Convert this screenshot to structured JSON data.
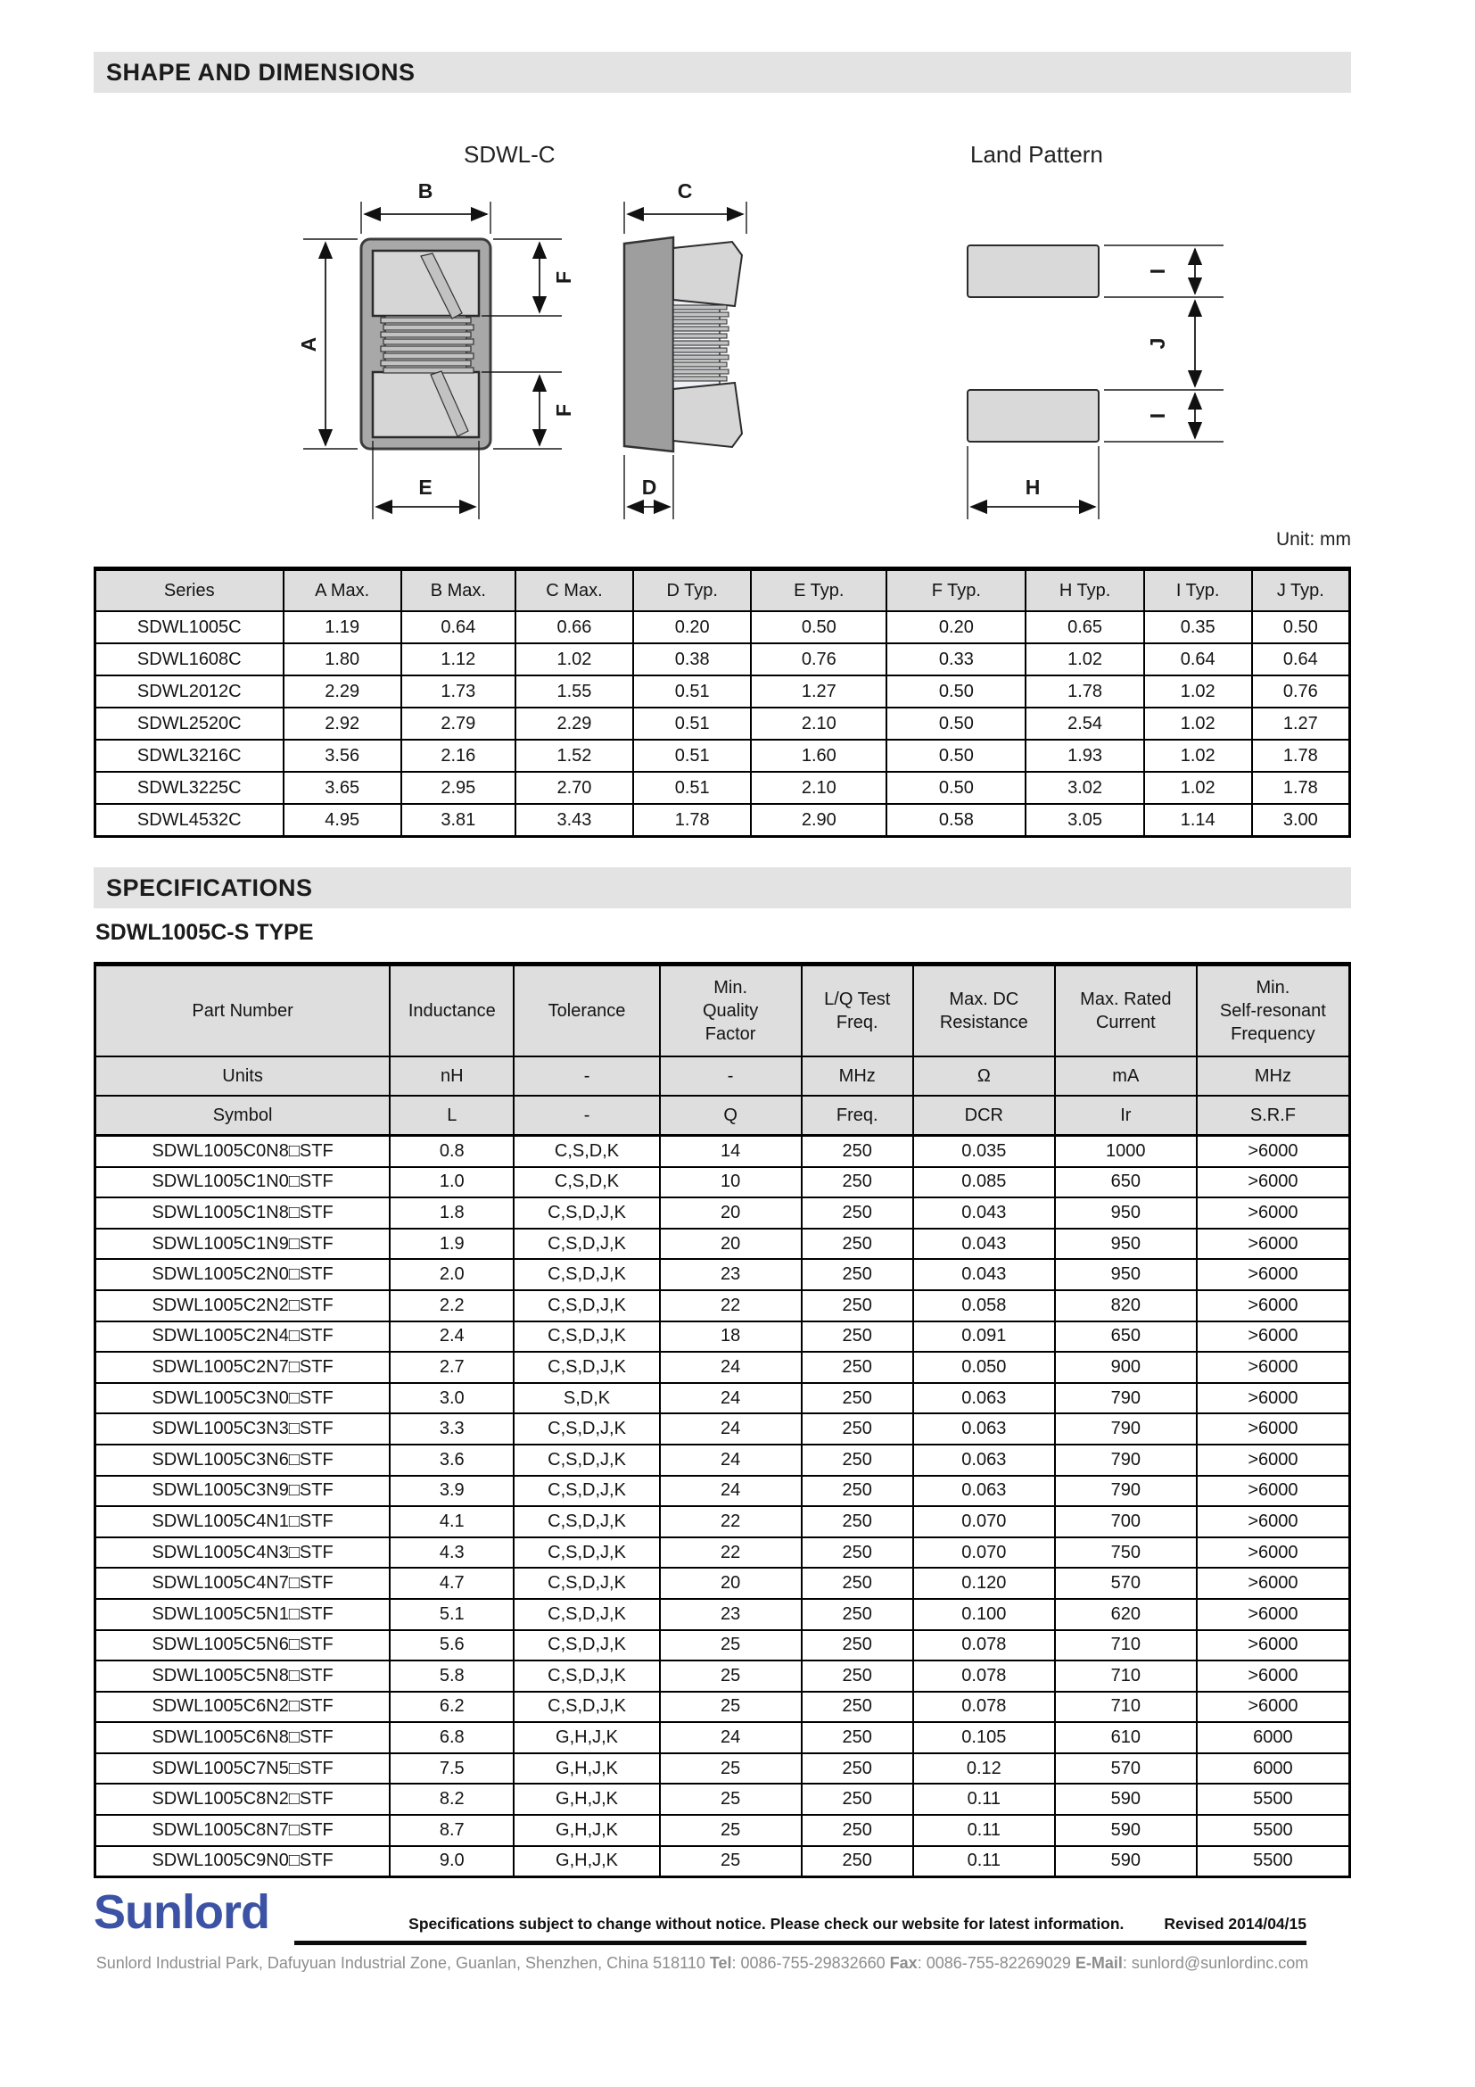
{
  "section_shape": {
    "title": "SHAPE AND DIMENSIONS"
  },
  "drawings": {
    "front_title": "SDWL-C",
    "land_title": "Land Pattern",
    "unit_note": "Unit: mm",
    "labels": {
      "a": "A",
      "b": "B",
      "c": "C",
      "d": "D",
      "e": "E",
      "f": "F",
      "h": "H",
      "i": "I",
      "j": "J"
    }
  },
  "dim_table": {
    "headers": [
      "Series",
      "A Max.",
      "B Max.",
      "C Max.",
      "D Typ.",
      "E Typ.",
      "F Typ.",
      "H Typ.",
      "I Typ.",
      "J Typ."
    ],
    "rows": [
      [
        "SDWL1005C",
        "1.19",
        "0.64",
        "0.66",
        "0.20",
        "0.50",
        "0.20",
        "0.65",
        "0.35",
        "0.50"
      ],
      [
        "SDWL1608C",
        "1.80",
        "1.12",
        "1.02",
        "0.38",
        "0.76",
        "0.33",
        "1.02",
        "0.64",
        "0.64"
      ],
      [
        "SDWL2012C",
        "2.29",
        "1.73",
        "1.55",
        "0.51",
        "1.27",
        "0.50",
        "1.78",
        "1.02",
        "0.76"
      ],
      [
        "SDWL2520C",
        "2.92",
        "2.79",
        "2.29",
        "0.51",
        "2.10",
        "0.50",
        "2.54",
        "1.02",
        "1.27"
      ],
      [
        "SDWL3216C",
        "3.56",
        "2.16",
        "1.52",
        "0.51",
        "1.60",
        "0.50",
        "1.93",
        "1.02",
        "1.78"
      ],
      [
        "SDWL3225C",
        "3.65",
        "2.95",
        "2.70",
        "0.51",
        "2.10",
        "0.50",
        "3.02",
        "1.02",
        "1.78"
      ],
      [
        "SDWL4532C",
        "4.95",
        "3.81",
        "3.43",
        "1.78",
        "2.90",
        "0.58",
        "3.05",
        "1.14",
        "3.00"
      ]
    ]
  },
  "section_specs": {
    "title": "SPECIFICATIONS",
    "type_title": "SDWL1005C-S TYPE"
  },
  "spec_table": {
    "headers": [
      "Part Number",
      "Inductance",
      "Tolerance",
      "Min.\nQuality\nFactor",
      "L/Q Test\nFreq.",
      "Max. DC\nResistance",
      "Max. Rated\nCurrent",
      "Min.\nSelf-resonant\nFrequency"
    ],
    "units_row": [
      "Units",
      "nH",
      "-",
      "-",
      "MHz",
      "Ω",
      "mA",
      "MHz"
    ],
    "symbol_row": [
      "Symbol",
      "L",
      "-",
      "Q",
      "Freq.",
      "DCR",
      "Ir",
      "S.R.F"
    ],
    "rows": [
      [
        "SDWL1005C0N8□STF",
        "0.8",
        "C,S,D,K",
        "14",
        "250",
        "0.035",
        "1000",
        ">6000"
      ],
      [
        "SDWL1005C1N0□STF",
        "1.0",
        "C,S,D,K",
        "10",
        "250",
        "0.085",
        "650",
        ">6000"
      ],
      [
        "SDWL1005C1N8□STF",
        "1.8",
        "C,S,D,J,K",
        "20",
        "250",
        "0.043",
        "950",
        ">6000"
      ],
      [
        "SDWL1005C1N9□STF",
        "1.9",
        "C,S,D,J,K",
        "20",
        "250",
        "0.043",
        "950",
        ">6000"
      ],
      [
        "SDWL1005C2N0□STF",
        "2.0",
        "C,S,D,J,K",
        "23",
        "250",
        "0.043",
        "950",
        ">6000"
      ],
      [
        "SDWL1005C2N2□STF",
        "2.2",
        "C,S,D,J,K",
        "22",
        "250",
        "0.058",
        "820",
        ">6000"
      ],
      [
        "SDWL1005C2N4□STF",
        "2.4",
        "C,S,D,J,K",
        "18",
        "250",
        "0.091",
        "650",
        ">6000"
      ],
      [
        "SDWL1005C2N7□STF",
        "2.7",
        "C,S,D,J,K",
        "24",
        "250",
        "0.050",
        "900",
        ">6000"
      ],
      [
        "SDWL1005C3N0□STF",
        "3.0",
        "S,D,K",
        "24",
        "250",
        "0.063",
        "790",
        ">6000"
      ],
      [
        "SDWL1005C3N3□STF",
        "3.3",
        "C,S,D,J,K",
        "24",
        "250",
        "0.063",
        "790",
        ">6000"
      ],
      [
        "SDWL1005C3N6□STF",
        "3.6",
        "C,S,D,J,K",
        "24",
        "250",
        "0.063",
        "790",
        ">6000"
      ],
      [
        "SDWL1005C3N9□STF",
        "3.9",
        "C,S,D,J,K",
        "24",
        "250",
        "0.063",
        "790",
        ">6000"
      ],
      [
        "SDWL1005C4N1□STF",
        "4.1",
        "C,S,D,J,K",
        "22",
        "250",
        "0.070",
        "700",
        ">6000"
      ],
      [
        "SDWL1005C4N3□STF",
        "4.3",
        "C,S,D,J,K",
        "22",
        "250",
        "0.070",
        "750",
        ">6000"
      ],
      [
        "SDWL1005C4N7□STF",
        "4.7",
        "C,S,D,J,K",
        "20",
        "250",
        "0.120",
        "570",
        ">6000"
      ],
      [
        "SDWL1005C5N1□STF",
        "5.1",
        "C,S,D,J,K",
        "23",
        "250",
        "0.100",
        "620",
        ">6000"
      ],
      [
        "SDWL1005C5N6□STF",
        "5.6",
        "C,S,D,J,K",
        "25",
        "250",
        "0.078",
        "710",
        ">6000"
      ],
      [
        "SDWL1005C5N8□STF",
        "5.8",
        "C,S,D,J,K",
        "25",
        "250",
        "0.078",
        "710",
        ">6000"
      ],
      [
        "SDWL1005C6N2□STF",
        "6.2",
        "C,S,D,J,K",
        "25",
        "250",
        "0.078",
        "710",
        ">6000"
      ],
      [
        "SDWL1005C6N8□STF",
        "6.8",
        "G,H,J,K",
        "24",
        "250",
        "0.105",
        "610",
        "6000"
      ],
      [
        "SDWL1005C7N5□STF",
        "7.5",
        "G,H,J,K",
        "25",
        "250",
        "0.12",
        "570",
        "6000"
      ],
      [
        "SDWL1005C8N2□STF",
        "8.2",
        "G,H,J,K",
        "25",
        "250",
        "0.11",
        "590",
        "5500"
      ],
      [
        "SDWL1005C8N7□STF",
        "8.7",
        "G,H,J,K",
        "25",
        "250",
        "0.11",
        "590",
        "5500"
      ],
      [
        "SDWL1005C9N0□STF",
        "9.0",
        "G,H,J,K",
        "25",
        "250",
        "0.11",
        "590",
        "5500"
      ]
    ]
  },
  "footer": {
    "logo_text": "Sunlord",
    "notice": "Specifications subject to change without notice. Please check our website for latest information.",
    "revised": "Revised 2014/04/15",
    "address": {
      "line_prefix": "Sunlord Industrial Park, Dafuyuan Industrial Zone, Guanlan, Shenzhen, China 518110 ",
      "tel_label": "Tel",
      "tel": ": 0086-755-29832660 ",
      "fax_label": "Fax",
      "fax": ": 0086-755-82269029 ",
      "email_label": "E-Mail",
      "email": ": sunlord@sunlordinc.com"
    }
  }
}
